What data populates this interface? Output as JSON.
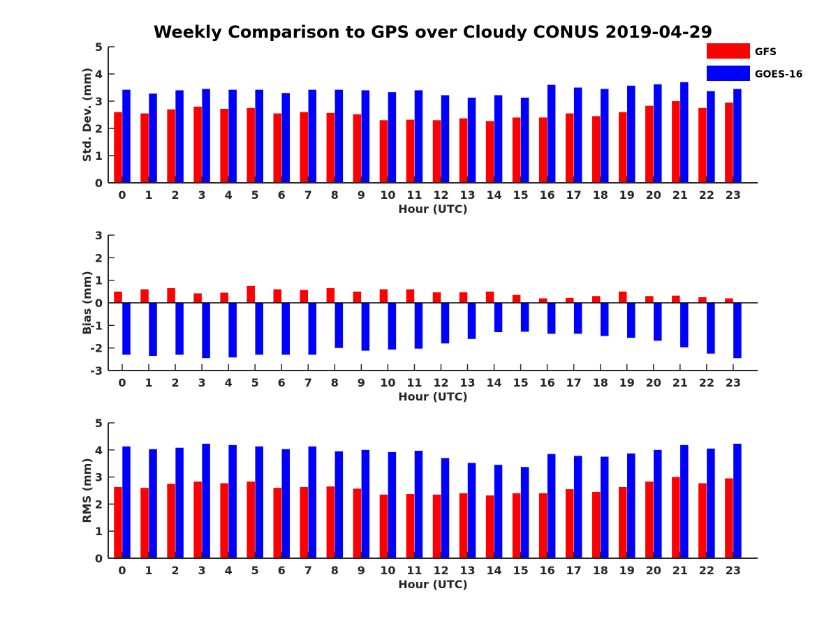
{
  "title": "Weekly Comparison to GPS over Cloudy CONUS 2019-04-29",
  "legend": {
    "placement": "top-right",
    "entries": [
      {
        "label": "GFS",
        "color": "#ff0000"
      },
      {
        "label": "GOES-16",
        "color": "#0000ff"
      }
    ]
  },
  "chart_data": [
    {
      "type": "bar",
      "xlabel": "Hour (UTC)",
      "ylabel": "Std. Dev. (mm)",
      "ylim": [
        0,
        5
      ],
      "yticks": [
        "0",
        "1",
        "2",
        "3",
        "4",
        "5"
      ],
      "categories": [
        "0",
        "1",
        "2",
        "3",
        "4",
        "5",
        "6",
        "7",
        "8",
        "9",
        "10",
        "11",
        "12",
        "13",
        "14",
        "15",
        "16",
        "17",
        "18",
        "19",
        "20",
        "21",
        "22",
        "23"
      ],
      "series": [
        {
          "name": "GFS",
          "color": "#ff0000",
          "values": [
            2.6,
            2.55,
            2.7,
            2.8,
            2.72,
            2.75,
            2.55,
            2.6,
            2.57,
            2.52,
            2.3,
            2.32,
            2.3,
            2.37,
            2.27,
            2.4,
            2.4,
            2.55,
            2.45,
            2.6,
            2.83,
            3.0,
            2.75,
            2.95
          ]
        },
        {
          "name": "GOES-16",
          "color": "#0000ff",
          "values": [
            3.42,
            3.28,
            3.4,
            3.45,
            3.42,
            3.42,
            3.3,
            3.42,
            3.42,
            3.4,
            3.33,
            3.4,
            3.22,
            3.13,
            3.22,
            3.13,
            3.6,
            3.5,
            3.45,
            3.57,
            3.62,
            3.7,
            3.37,
            3.45
          ]
        }
      ]
    },
    {
      "type": "bar",
      "xlabel": "Hour (UTC)",
      "ylabel": "Bias (mm)",
      "ylim": [
        -3,
        3
      ],
      "yticks": [
        "-3",
        "-2",
        "-1",
        "0",
        "1",
        "2",
        "3"
      ],
      "baseline": 0,
      "categories": [
        "0",
        "1",
        "2",
        "3",
        "4",
        "5",
        "6",
        "7",
        "8",
        "9",
        "10",
        "11",
        "12",
        "13",
        "14",
        "15",
        "16",
        "17",
        "18",
        "19",
        "20",
        "21",
        "22",
        "23"
      ],
      "series": [
        {
          "name": "GFS",
          "color": "#ff0000",
          "values": [
            0.5,
            0.6,
            0.65,
            0.42,
            0.45,
            0.75,
            0.6,
            0.57,
            0.65,
            0.5,
            0.6,
            0.6,
            0.47,
            0.47,
            0.5,
            0.35,
            0.2,
            0.22,
            0.3,
            0.5,
            0.3,
            0.32,
            0.25,
            0.2
          ]
        },
        {
          "name": "GOES-16",
          "color": "#0000ff",
          "values": [
            -2.3,
            -2.35,
            -2.3,
            -2.45,
            -2.42,
            -2.3,
            -2.3,
            -2.3,
            -2.0,
            -2.12,
            -2.07,
            -2.03,
            -1.8,
            -1.6,
            -1.3,
            -1.28,
            -1.37,
            -1.37,
            -1.47,
            -1.55,
            -1.68,
            -1.97,
            -2.25,
            -2.45
          ]
        }
      ]
    },
    {
      "type": "bar",
      "xlabel": "Hour (UTC)",
      "ylabel": "RMS (mm)",
      "ylim": [
        0,
        5
      ],
      "yticks": [
        "0",
        "1",
        "2",
        "3",
        "4",
        "5"
      ],
      "categories": [
        "0",
        "1",
        "2",
        "3",
        "4",
        "5",
        "6",
        "7",
        "8",
        "9",
        "10",
        "11",
        "12",
        "13",
        "14",
        "15",
        "16",
        "17",
        "18",
        "19",
        "20",
        "21",
        "22",
        "23"
      ],
      "series": [
        {
          "name": "GFS",
          "color": "#ff0000",
          "values": [
            2.63,
            2.6,
            2.75,
            2.83,
            2.77,
            2.83,
            2.6,
            2.63,
            2.65,
            2.57,
            2.35,
            2.37,
            2.35,
            2.4,
            2.32,
            2.4,
            2.4,
            2.55,
            2.45,
            2.63,
            2.83,
            3.0,
            2.77,
            2.95
          ]
        },
        {
          "name": "GOES-16",
          "color": "#0000ff",
          "values": [
            4.13,
            4.03,
            4.08,
            4.23,
            4.18,
            4.13,
            4.03,
            4.13,
            3.95,
            4.0,
            3.92,
            3.97,
            3.7,
            3.52,
            3.45,
            3.37,
            3.85,
            3.78,
            3.75,
            3.87,
            4.0,
            4.18,
            4.05,
            4.23
          ]
        }
      ]
    }
  ]
}
